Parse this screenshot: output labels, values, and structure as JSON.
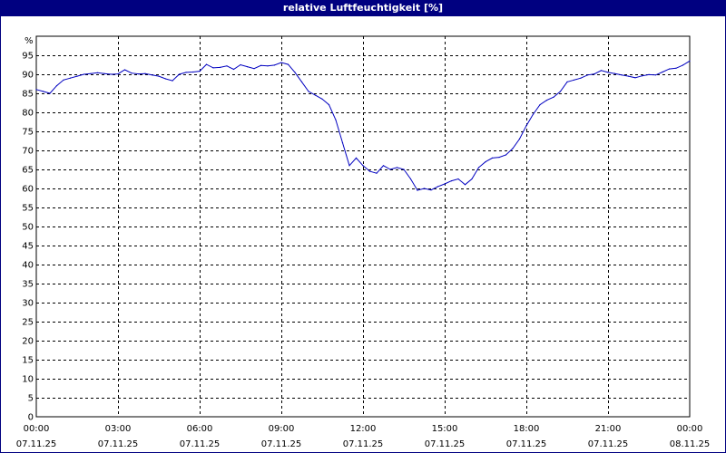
{
  "colors": {
    "title_bar": "#000080",
    "title_text": "#ffffff",
    "line": "#0000c0",
    "grid": "#000000",
    "background": "#ffffff"
  },
  "chart_data": {
    "type": "line",
    "title": "relative Luftfeuchtigkeit [%]",
    "ylabel": "%",
    "xlabel": "",
    "ylim": [
      0,
      100
    ],
    "xlim": [
      0,
      24
    ],
    "grid": true,
    "y_ticks": [
      0,
      5,
      10,
      15,
      20,
      25,
      30,
      35,
      40,
      45,
      50,
      55,
      60,
      65,
      70,
      75,
      80,
      85,
      90,
      95
    ],
    "x_ticks": [
      {
        "time": "00:00",
        "date": "07.11.25",
        "hour": 0
      },
      {
        "time": "03:00",
        "date": "07.11.25",
        "hour": 3
      },
      {
        "time": "06:00",
        "date": "07.11.25",
        "hour": 6
      },
      {
        "time": "09:00",
        "date": "07.11.25",
        "hour": 9
      },
      {
        "time": "12:00",
        "date": "07.11.25",
        "hour": 12
      },
      {
        "time": "15:00",
        "date": "07.11.25",
        "hour": 15
      },
      {
        "time": "18:00",
        "date": "07.11.25",
        "hour": 18
      },
      {
        "time": "21:00",
        "date": "07.11.25",
        "hour": 21
      },
      {
        "time": "00:00",
        "date": "08.11.25",
        "hour": 24
      }
    ],
    "series": [
      {
        "x": [
          0,
          0.25,
          0.5,
          0.75,
          1.0,
          1.25,
          1.5,
          1.75,
          2.0,
          2.25,
          2.5,
          2.75,
          3.0,
          3.25,
          3.5,
          3.75,
          4.0,
          4.25,
          4.5,
          4.75,
          5.0,
          5.25,
          5.5,
          5.75,
          6.0,
          6.25,
          6.5,
          6.75,
          7.0,
          7.25,
          7.5,
          7.75,
          8.0,
          8.25,
          8.5,
          8.75,
          9.0,
          9.25,
          9.5,
          9.75,
          10.0,
          10.25,
          10.5,
          10.75,
          11.0,
          11.25,
          11.5,
          11.75,
          12.0,
          12.25,
          12.5,
          12.75,
          13.0,
          13.25,
          13.5,
          13.75,
          14.0,
          14.25,
          14.5,
          14.75,
          15.0,
          15.25,
          15.5,
          15.75,
          16.0,
          16.25,
          16.5,
          16.75,
          17.0,
          17.25,
          17.5,
          17.75,
          18.0,
          18.25,
          18.5,
          18.75,
          19.0,
          19.25,
          19.5,
          19.75,
          20.0,
          20.25,
          20.5,
          20.75,
          21.0,
          21.25,
          21.5,
          21.75,
          22.0,
          22.25,
          22.5,
          22.75,
          23.0,
          23.25,
          23.5,
          23.75,
          24.0
        ],
        "values": [
          86,
          85.5,
          85,
          87,
          88.5,
          89,
          89.5,
          90,
          90.2,
          90.4,
          90.2,
          90,
          90.1,
          91.2,
          90.3,
          90.1,
          90.2,
          89.8,
          89.5,
          88.8,
          88.3,
          90,
          90.5,
          90.6,
          90.8,
          92.6,
          91.7,
          91.8,
          92.2,
          91.3,
          92.5,
          92,
          91.5,
          92.3,
          92.2,
          92.4,
          93.1,
          92.6,
          90.5,
          88,
          85.5,
          84.5,
          83.5,
          82,
          78,
          72,
          66,
          68,
          66,
          64.5,
          64,
          66,
          65,
          65.5,
          65,
          62.5,
          59.5,
          60,
          59.6,
          60.5,
          61.2,
          62,
          62.5,
          61,
          62.5,
          65.5,
          67,
          68,
          68.2,
          68.8,
          70.5,
          73,
          76.5,
          79.5,
          82,
          83.2,
          84,
          85.5,
          88,
          88.5,
          89,
          89.8,
          90.1,
          91,
          90.5,
          90.2,
          89.8,
          89.5,
          89.1,
          89.6,
          89.9,
          89.8,
          90.6,
          91.4,
          91.6,
          92.4,
          93.5
        ]
      }
    ]
  }
}
